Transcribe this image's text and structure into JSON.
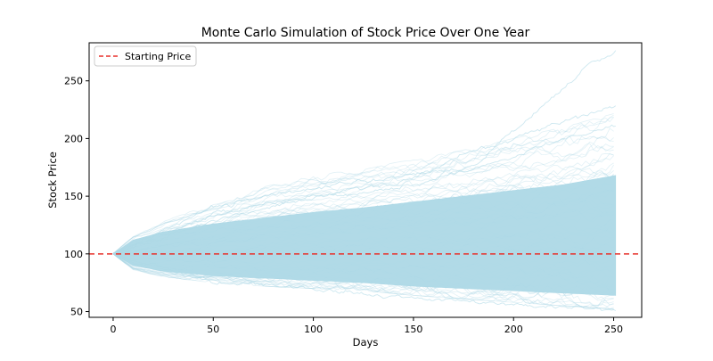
{
  "chart_data": {
    "type": "line",
    "title": "Monte Carlo Simulation of Stock Price Over One Year",
    "xlabel": "Days",
    "ylabel": "Stock Price",
    "xlim": [
      -12,
      264
    ],
    "ylim": [
      45,
      283
    ],
    "x_ticks": [
      0,
      50,
      100,
      150,
      200,
      250
    ],
    "y_ticks": [
      50,
      100,
      150,
      200,
      250
    ],
    "grid": false,
    "legend": {
      "position": "top-left",
      "entries": [
        "Starting Price"
      ]
    },
    "reference_line": {
      "name": "Starting Price",
      "orientation": "horizontal",
      "y": 100,
      "style": "dashed",
      "color": "#e8312b"
    },
    "simulation": {
      "days": 252,
      "start_price": 100,
      "path_color": "#add8e6",
      "dense_band": {
        "x": [
          0,
          10,
          25,
          50,
          75,
          100,
          125,
          150,
          175,
          200,
          225,
          251
        ],
        "upper": [
          100,
          112,
          119,
          126,
          131,
          136,
          140,
          145,
          150,
          155,
          160,
          168
        ],
        "lower": [
          100,
          90,
          85,
          81,
          79,
          77,
          75,
          72,
          70,
          68,
          66,
          64
        ]
      },
      "outer_envelope": {
        "x": [
          0,
          10,
          25,
          50,
          75,
          100,
          125,
          150,
          175,
          200,
          225,
          251
        ],
        "upper": [
          100,
          116,
          128,
          144,
          158,
          168,
          174,
          182,
          190,
          200,
          210,
          222
        ],
        "lower": [
          100,
          86,
          80,
          75,
          72,
          70,
          68,
          64,
          61,
          58,
          55,
          52
        ]
      },
      "highlighted_paths": [
        {
          "name": "max-path",
          "x": [
            0,
            50,
            100,
            150,
            180,
            200,
            215,
            230,
            240,
            251
          ],
          "y": [
            100,
            140,
            158,
            168,
            175,
            205,
            230,
            250,
            268,
            275
          ]
        },
        {
          "name": "high-path-2",
          "x": [
            0,
            50,
            100,
            150,
            175,
            200,
            225,
            251
          ],
          "y": [
            100,
            135,
            150,
            165,
            185,
            200,
            215,
            228
          ]
        },
        {
          "name": "high-path-3",
          "x": [
            0,
            50,
            100,
            150,
            175,
            200,
            225,
            251
          ],
          "y": [
            100,
            130,
            148,
            160,
            172,
            185,
            200,
            212
          ]
        },
        {
          "name": "min-path",
          "x": [
            0,
            50,
            100,
            150,
            200,
            251
          ],
          "y": [
            100,
            76,
            70,
            62,
            56,
            51
          ]
        }
      ]
    },
    "colors": {
      "reference": "#e8312b",
      "paths": "#add8e6",
      "axes": "#000000"
    }
  }
}
